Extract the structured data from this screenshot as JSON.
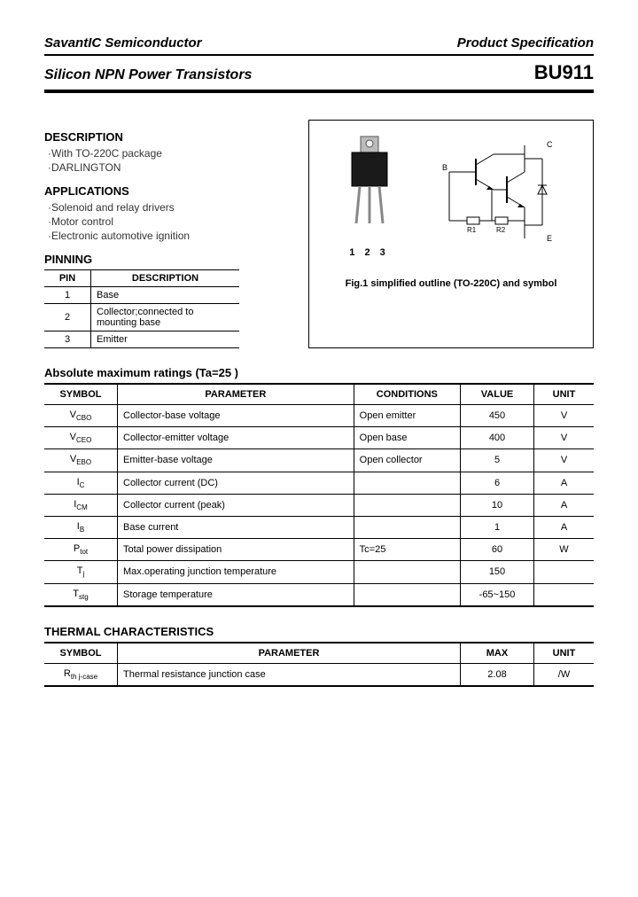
{
  "header": {
    "company": "SavantIC Semiconductor",
    "doc_type": "Product Specification",
    "product_family": "Silicon NPN Power Transistors",
    "part_number": "BU911"
  },
  "description": {
    "heading": "DESCRIPTION",
    "items": [
      "·With TO-220C package",
      "·DARLINGTON"
    ]
  },
  "applications": {
    "heading": "APPLICATIONS",
    "items": [
      "·Solenoid and relay drivers",
      "·Motor control",
      "·Electronic automotive ignition"
    ]
  },
  "pinning": {
    "heading": "PINNING",
    "col_pin": "PIN",
    "col_desc": "DESCRIPTION",
    "rows": [
      {
        "pin": "1",
        "desc": "Base"
      },
      {
        "pin": "2",
        "desc": "Collector;connected to mounting base"
      },
      {
        "pin": "3",
        "desc": "Emitter"
      }
    ]
  },
  "figure": {
    "pin_labels": "1 2 3",
    "caption": "Fig.1 simplified outline (TO-220C) and symbol",
    "schematic_labels": {
      "B": "B",
      "C": "C",
      "E": "E",
      "R1": "R1",
      "R2": "R2"
    }
  },
  "abs_max": {
    "heading": "Absolute maximum ratings (Ta=25  )",
    "col_symbol": "SYMBOL",
    "col_param": "PARAMETER",
    "col_cond": "CONDITIONS",
    "col_value": "VALUE",
    "col_unit": "UNIT",
    "rows": [
      {
        "sym": "V",
        "sub": "CBO",
        "param": "Collector-base voltage",
        "cond": "Open emitter",
        "val": "450",
        "unit": "V"
      },
      {
        "sym": "V",
        "sub": "CEO",
        "param": "Collector-emitter voltage",
        "cond": "Open base",
        "val": "400",
        "unit": "V"
      },
      {
        "sym": "V",
        "sub": "EBO",
        "param": "Emitter-base voltage",
        "cond": "Open collector",
        "val": "5",
        "unit": "V"
      },
      {
        "sym": "I",
        "sub": "C",
        "param": "Collector current (DC)",
        "cond": "",
        "val": "6",
        "unit": "A"
      },
      {
        "sym": "I",
        "sub": "CM",
        "param": "Collector current (peak)",
        "cond": "",
        "val": "10",
        "unit": "A"
      },
      {
        "sym": "I",
        "sub": "B",
        "param": "Base current",
        "cond": "",
        "val": "1",
        "unit": "A"
      },
      {
        "sym": "P",
        "sub": "tot",
        "param": "Total power dissipation",
        "cond": "Tc=25",
        "val": "60",
        "unit": "W"
      },
      {
        "sym": "T",
        "sub": "j",
        "param": "Max.operating junction temperature",
        "cond": "",
        "val": "150",
        "unit": ""
      },
      {
        "sym": "T",
        "sub": "stg",
        "param": "Storage temperature",
        "cond": "",
        "val": "-65~150",
        "unit": ""
      }
    ]
  },
  "thermal": {
    "heading": "THERMAL CHARACTERISTICS",
    "col_symbol": "SYMBOL",
    "col_param": "PARAMETER",
    "col_max": "MAX",
    "col_unit": "UNIT",
    "rows": [
      {
        "sym": "R",
        "sub": "th j-case",
        "param": "Thermal resistance junction case",
        "max": "2.08",
        "unit": "/W"
      }
    ]
  }
}
